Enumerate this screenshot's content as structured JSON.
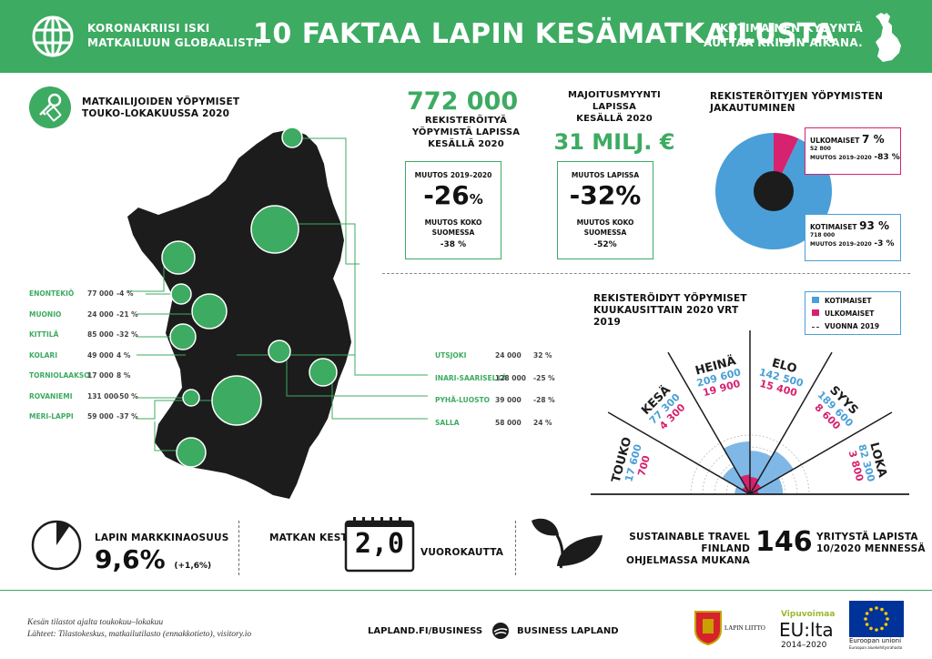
{
  "header": {
    "tagline_left_1": "KORONAKRIISI ISKI",
    "tagline_left_2": "MATKAILUUN GLOBAALISTI.",
    "title": "10 FAKTAA LAPIN KESÄMATKAILUSTA",
    "tagline_right_1": "KOTIMAINEN KYSYNTÄ",
    "tagline_right_2": "AUTTAA KRIISIN AIKANA."
  },
  "map_section": {
    "heading_1": "MATKAILIJOIDEN YÖPYMISET",
    "heading_2": "TOUKO-LOKAKUUSSA 2020",
    "left_rows": [
      {
        "name": "ENONTEKIÖ",
        "value": "77 000",
        "change": "-4 %"
      },
      {
        "name": "MUONIO",
        "value": "24 000",
        "change": "-21 %"
      },
      {
        "name": "KITTILÄ",
        "value": "85 000",
        "change": "-32 %"
      },
      {
        "name": "KOLARI",
        "value": "49 000",
        "change": "4 %"
      },
      {
        "name": "TORNIOLAAKSO",
        "value": "17 000",
        "change": "8 %"
      },
      {
        "name": "ROVANIEMI",
        "value": "131 000",
        "change": "-50 %"
      },
      {
        "name": "MERI-LAPPI",
        "value": "59 000",
        "change": "-37 %"
      }
    ],
    "right_rows": [
      {
        "name": "UTSJOKI",
        "value": "24 000",
        "change": "32 %"
      },
      {
        "name": "INARI-SAARISELKÄ",
        "value": "128 000",
        "change": "-25 %"
      },
      {
        "name": "PYHÄ-LUOSTO",
        "value": "39 000",
        "change": "-28 %"
      },
      {
        "name": "SALLA",
        "value": "58 000",
        "change": "24 %"
      }
    ]
  },
  "stat1": {
    "big": "772 000",
    "cap_1": "REKISTERÖITYÄ",
    "cap_2": "YÖPYMISTÄ LAPISSA",
    "cap_3": "KESÄLLÄ 2020",
    "box_label": "MUUTOS 2019–2020",
    "box_big": "-26",
    "box_unit": "%",
    "box_sub_1": "MUUTOS KOKO",
    "box_sub_2": "SUOMESSA",
    "box_sub_3": "-38 %"
  },
  "stat2": {
    "cap_1": "MAJOITUSMYYNTI",
    "cap_2": "LAPISSA",
    "cap_3": "KESÄLLÄ 2020",
    "big": "31 MILJ. €",
    "box_label": "MUUTOS LAPISSA",
    "box_big": "-32%",
    "box_sub_1": "MUUTOS KOKO",
    "box_sub_2": "SUOMESSA",
    "box_sub_3": "-52%"
  },
  "distribution": {
    "heading_1": "REKISTERÖITYJEN YÖPYMISTEN",
    "heading_2": "JAKAUTUMINEN",
    "foreign_label": "ULKOMAISET",
    "foreign_pct": "7 %",
    "foreign_count": "52 800",
    "foreign_change_label": "MUUTOS 2019–2020",
    "foreign_change": "-83 %",
    "domestic_label": "KOTIMAISET",
    "domestic_pct": "93 %",
    "domestic_count": "718 000",
    "domestic_change_label": "MUUTOS 2019–2020",
    "domestic_change": "-3 %",
    "color_domestic": "#4a9fd8",
    "color_foreign": "#d6226f"
  },
  "chart_data": {
    "type": "bar",
    "title": "REKISTERÖIDYT YÖPYMISET KUUKAUSITTAIN 2020 VRT 2019",
    "categories": [
      "TOUKO",
      "KESÄ",
      "HEINÄ",
      "ELO",
      "SYYS",
      "LOKA"
    ],
    "series": [
      {
        "name": "KOTIMAISET",
        "values": [
          17600,
          77300,
          209600,
          142500,
          189600,
          82300
        ]
      },
      {
        "name": "ULKOMAISET",
        "values": [
          700,
          4300,
          19900,
          15400,
          8600,
          3800
        ]
      }
    ],
    "value_labels_domestic": [
      "17 600",
      "77 300",
      "209 600",
      "142 500",
      "189 600",
      "82 300"
    ],
    "value_labels_foreign": [
      "700",
      "4 300",
      "19 900",
      "15 400",
      "8 600",
      "3 800"
    ],
    "legend": [
      "KOTIMAISET",
      "ULKOMAISET",
      "VUONNA 2019"
    ],
    "legend_position": "top-right"
  },
  "bottom": {
    "share_label": "LAPIN MARKKINAOSUUS",
    "share_value": "9,6%",
    "share_change": "(+1,6%)",
    "share_fraction": 0.096,
    "freq_label": "MATKAN KESTO",
    "freq_value": "2,0",
    "freq_unit": "VUOROKAUTTA",
    "stf_1": "SUSTAINABLE TRAVEL FINLAND",
    "stf_2": "OHJELMASSA MUKANA",
    "stf_num": "146",
    "stf_3": "YRITYSTÄ LAPISTA",
    "stf_4": "10/2020 MENNESSÄ"
  },
  "footer": {
    "src_1": "Kesän tilastot ajalta toukokuu–lokakuu",
    "src_2": "Lähteet: Tilastokeskus, matkailutilasto (ennakkotieto), visitory.io",
    "link": "LAPLAND.FI/BUSINESS",
    "bl": "BUSINESS LAPLAND",
    "lapin_liitto": "LAPIN LIITTO",
    "vipuvoimaa": "Vipuvoimaa",
    "eulta": "EU:lta",
    "years": "2014–2020",
    "eu_1": "Euroopan unioni",
    "eu_2": "Euroopan aluekehitysrahasto",
    "color_accent": "#3dab62"
  }
}
